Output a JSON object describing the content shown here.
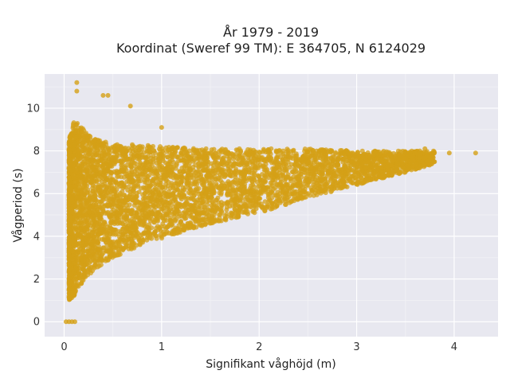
{
  "chart_data": {
    "type": "scatter",
    "title_line1": "År 1979 - 2019",
    "title_line2": "Koordinat (Sweref 99 TM): E 364705, N 6124029",
    "xlabel": "Signifikant våghöjd (m)",
    "ylabel": "Vågperiod (s)",
    "xlim": [
      -0.2,
      4.45
    ],
    "ylim": [
      -0.7,
      11.6
    ],
    "xticks": [
      0,
      1,
      2,
      3,
      4
    ],
    "yticks": [
      0,
      2,
      4,
      6,
      8,
      10
    ],
    "grid": true,
    "point_color": "#d4a017",
    "background_color": "#e8e8f0",
    "envelope": [
      {
        "x": 0.05,
        "lower": 1.0,
        "upper": 8.5
      },
      {
        "x": 0.1,
        "lower": 1.2,
        "upper": 9.5
      },
      {
        "x": 0.2,
        "lower": 1.9,
        "upper": 9.0
      },
      {
        "x": 0.3,
        "lower": 2.4,
        "upper": 8.6
      },
      {
        "x": 0.5,
        "lower": 3.0,
        "upper": 8.3
      },
      {
        "x": 0.8,
        "lower": 3.6,
        "upper": 8.3
      },
      {
        "x": 1.0,
        "lower": 3.9,
        "upper": 8.2
      },
      {
        "x": 1.5,
        "lower": 4.6,
        "upper": 8.1
      },
      {
        "x": 2.0,
        "lower": 5.1,
        "upper": 8.1
      },
      {
        "x": 2.5,
        "lower": 5.8,
        "upper": 8.1
      },
      {
        "x": 3.0,
        "lower": 6.4,
        "upper": 8.0
      },
      {
        "x": 3.5,
        "lower": 7.0,
        "upper": 8.0
      },
      {
        "x": 3.8,
        "lower": 7.4,
        "upper": 8.0
      }
    ],
    "notable_points": [
      {
        "x": 0.13,
        "y": 11.2
      },
      {
        "x": 0.13,
        "y": 10.8
      },
      {
        "x": 0.4,
        "y": 10.6
      },
      {
        "x": 0.45,
        "y": 10.6
      },
      {
        "x": 0.68,
        "y": 10.1
      },
      {
        "x": 1.0,
        "y": 9.1
      },
      {
        "x": 3.7,
        "y": 8.1
      },
      {
        "x": 3.95,
        "y": 7.9
      },
      {
        "x": 4.22,
        "y": 7.9
      },
      {
        "x": 0.02,
        "y": 0.0
      },
      {
        "x": 0.05,
        "y": 0.0
      },
      {
        "x": 0.08,
        "y": 0.0
      },
      {
        "x": 0.11,
        "y": 0.0
      }
    ]
  }
}
